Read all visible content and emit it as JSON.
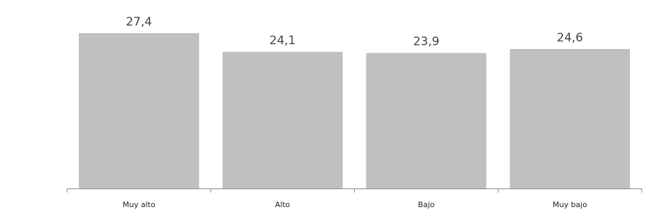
{
  "chart_data": {
    "type": "bar",
    "categories": [
      "Muy alto",
      "Alto",
      "Bajo",
      "Muy bajo"
    ],
    "values": [
      27.4,
      24.1,
      23.9,
      24.6
    ],
    "value_labels": [
      "27,4",
      "24,1",
      "23,9",
      "24,6"
    ],
    "ylim": [
      0,
      27.4
    ],
    "bar_color": "#c0c0c0",
    "axis_color": "#888888",
    "grid": false,
    "legend": "none"
  }
}
